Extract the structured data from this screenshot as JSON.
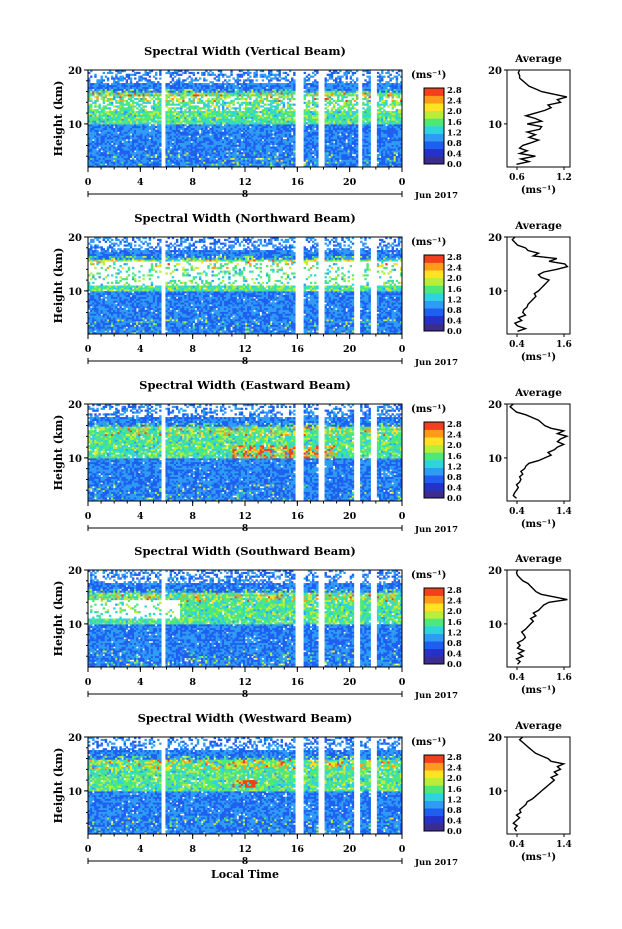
{
  "xaxis": {
    "ticks": [
      "0",
      "4",
      "8",
      "12",
      "16",
      "20",
      "0"
    ],
    "date_marker": "8",
    "month": "Jun 2017",
    "label": "Local Time"
  },
  "colorbar": {
    "unit": "(ms⁻¹)",
    "ticks": [
      "0.0",
      "0.4",
      "0.8",
      "1.2",
      "1.6",
      "2.0",
      "2.4",
      "2.8"
    ],
    "colors": [
      "#3b2c8f",
      "#2432c8",
      "#1e5ff0",
      "#2e9bf5",
      "#2fd3e0",
      "#4ee87a",
      "#b8ee3a",
      "#ffe224",
      "#ff9a1a",
      "#f0401c"
    ]
  },
  "ylabel": "Height (km)",
  "yticks": [
    "10",
    "20"
  ],
  "profile_title": "Average",
  "profile_unit": "(ms⁻¹)",
  "panels": [
    {
      "title": "Spectral Width (Vertical Beam)",
      "profile_xticks": [
        "0.6",
        "1.2"
      ],
      "profile_xlim": [
        0.4,
        1.4
      ],
      "gaps": [
        [
          5.6,
          5.9
        ],
        [
          15.9,
          16.4
        ],
        [
          17.6,
          18.0
        ],
        [
          20.7,
          20.9
        ],
        [
          21.6,
          22.0
        ]
      ],
      "profile": [
        [
          0.55,
          2.5
        ],
        [
          0.75,
          3.0
        ],
        [
          0.62,
          3.5
        ],
        [
          0.85,
          4.0
        ],
        [
          0.6,
          4.5
        ],
        [
          0.72,
          5.0
        ],
        [
          0.6,
          5.5
        ],
        [
          0.65,
          6.0
        ],
        [
          0.78,
          6.5
        ],
        [
          0.9,
          7.0
        ],
        [
          0.75,
          7.5
        ],
        [
          0.85,
          8.0
        ],
        [
          0.72,
          8.5
        ],
        [
          0.92,
          9.0
        ],
        [
          0.95,
          9.5
        ],
        [
          0.72,
          10.0
        ],
        [
          0.95,
          10.5
        ],
        [
          0.85,
          11.0
        ],
        [
          0.7,
          11.5
        ],
        [
          0.85,
          12.0
        ],
        [
          1.0,
          12.5
        ],
        [
          1.1,
          13.0
        ],
        [
          1.05,
          13.5
        ],
        [
          1.25,
          14.0
        ],
        [
          1.2,
          14.5
        ],
        [
          1.35,
          15.0
        ],
        [
          1.15,
          15.5
        ],
        [
          0.95,
          16.0
        ],
        [
          0.85,
          16.5
        ],
        [
          0.75,
          17.0
        ],
        [
          0.7,
          17.5
        ],
        [
          0.65,
          18.0
        ],
        [
          0.6,
          18.5
        ],
        [
          0.6,
          19.0
        ],
        [
          0.58,
          19.5
        ],
        [
          0.6,
          20.0
        ]
      ]
    },
    {
      "title": "Spectral Width (Northward Beam)",
      "profile_xticks": [
        "0.4",
        "1.6"
      ],
      "profile_xlim": [
        0.4,
        1.6
      ],
      "gaps": [
        [
          5.6,
          5.9
        ],
        [
          15.9,
          16.4
        ],
        [
          17.6,
          18.0
        ],
        [
          20.4,
          20.8
        ],
        [
          21.6,
          22.0
        ]
      ],
      "profile": [
        [
          0.6,
          2.5
        ],
        [
          0.75,
          3.0
        ],
        [
          0.6,
          3.5
        ],
        [
          0.55,
          4.0
        ],
        [
          0.68,
          4.5
        ],
        [
          0.62,
          5.0
        ],
        [
          0.75,
          5.5
        ],
        [
          0.7,
          6.0
        ],
        [
          0.72,
          6.5
        ],
        [
          0.78,
          7.0
        ],
        [
          0.8,
          7.5
        ],
        [
          0.85,
          8.0
        ],
        [
          0.9,
          8.5
        ],
        [
          0.95,
          9.0
        ],
        [
          0.92,
          9.5
        ],
        [
          1.0,
          10.0
        ],
        [
          1.05,
          10.5
        ],
        [
          1.1,
          11.0
        ],
        [
          1.15,
          11.5
        ],
        [
          1.2,
          12.0
        ],
        [
          1.05,
          12.5
        ],
        [
          1.0,
          13.0
        ],
        [
          1.1,
          13.5
        ],
        [
          1.35,
          14.0
        ],
        [
          1.55,
          14.5
        ],
        [
          1.5,
          15.0
        ],
        [
          1.2,
          15.5
        ],
        [
          1.35,
          16.0
        ],
        [
          0.9,
          16.5
        ],
        [
          1.0,
          17.0
        ],
        [
          0.8,
          17.5
        ],
        [
          0.75,
          18.0
        ],
        [
          0.6,
          18.5
        ],
        [
          0.55,
          19.0
        ],
        [
          0.5,
          19.5
        ],
        [
          0.55,
          20.0
        ]
      ]
    },
    {
      "title": "Spectral Width (Eastward Beam)",
      "profile_xticks": [
        "0.4",
        "1.4"
      ],
      "profile_xlim": [
        0.4,
        1.4
      ],
      "gaps": [
        [
          5.6,
          5.9
        ],
        [
          15.9,
          16.4
        ],
        [
          17.6,
          18.0
        ],
        [
          20.4,
          20.8
        ],
        [
          21.6,
          22.0
        ]
      ],
      "profile": [
        [
          0.55,
          2.5
        ],
        [
          0.5,
          3.0
        ],
        [
          0.52,
          3.5
        ],
        [
          0.55,
          4.0
        ],
        [
          0.58,
          4.5
        ],
        [
          0.55,
          5.0
        ],
        [
          0.6,
          5.5
        ],
        [
          0.62,
          6.0
        ],
        [
          0.6,
          6.5
        ],
        [
          0.65,
          7.0
        ],
        [
          0.62,
          7.5
        ],
        [
          0.68,
          8.0
        ],
        [
          0.7,
          8.5
        ],
        [
          0.75,
          9.0
        ],
        [
          0.9,
          9.5
        ],
        [
          1.0,
          10.0
        ],
        [
          1.1,
          10.5
        ],
        [
          1.05,
          11.0
        ],
        [
          1.15,
          11.5
        ],
        [
          1.2,
          12.0
        ],
        [
          1.3,
          12.5
        ],
        [
          1.2,
          13.0
        ],
        [
          1.25,
          13.5
        ],
        [
          1.35,
          14.0
        ],
        [
          1.2,
          14.5
        ],
        [
          1.3,
          15.0
        ],
        [
          1.1,
          15.5
        ],
        [
          1.0,
          16.0
        ],
        [
          0.95,
          16.5
        ],
        [
          0.9,
          17.0
        ],
        [
          0.8,
          17.5
        ],
        [
          0.7,
          18.0
        ],
        [
          0.55,
          18.5
        ],
        [
          0.5,
          19.0
        ],
        [
          0.45,
          19.5
        ],
        [
          0.5,
          20.0
        ]
      ]
    },
    {
      "title": "Spectral Width (Southward Beam)",
      "profile_xticks": [
        "0.4",
        "1.6"
      ],
      "profile_xlim": [
        0.4,
        1.6
      ],
      "gaps": [
        [
          5.6,
          5.9
        ],
        [
          15.9,
          16.4
        ],
        [
          17.6,
          18.0
        ],
        [
          20.4,
          20.8
        ],
        [
          21.6,
          22.0
        ]
      ],
      "profile": [
        [
          0.6,
          2.5
        ],
        [
          0.65,
          3.0
        ],
        [
          0.58,
          3.5
        ],
        [
          0.7,
          4.0
        ],
        [
          0.62,
          4.5
        ],
        [
          0.72,
          5.0
        ],
        [
          0.6,
          5.5
        ],
        [
          0.65,
          6.0
        ],
        [
          0.6,
          6.5
        ],
        [
          0.7,
          7.0
        ],
        [
          0.75,
          7.5
        ],
        [
          0.72,
          8.0
        ],
        [
          0.68,
          8.5
        ],
        [
          0.75,
          9.0
        ],
        [
          0.8,
          9.5
        ],
        [
          0.85,
          10.0
        ],
        [
          0.9,
          10.5
        ],
        [
          0.85,
          11.0
        ],
        [
          0.95,
          11.5
        ],
        [
          0.9,
          12.0
        ],
        [
          1.0,
          12.5
        ],
        [
          1.05,
          13.0
        ],
        [
          1.1,
          13.5
        ],
        [
          1.2,
          14.0
        ],
        [
          1.55,
          14.5
        ],
        [
          1.3,
          15.0
        ],
        [
          1.05,
          15.5
        ],
        [
          0.95,
          16.0
        ],
        [
          0.9,
          16.5
        ],
        [
          0.85,
          17.0
        ],
        [
          0.8,
          17.5
        ],
        [
          0.7,
          18.0
        ],
        [
          0.65,
          18.5
        ],
        [
          0.6,
          19.0
        ],
        [
          0.58,
          19.5
        ],
        [
          0.6,
          20.0
        ]
      ]
    },
    {
      "title": "Spectral Width (Westward Beam)",
      "profile_xticks": [
        "0.4",
        "1.4"
      ],
      "profile_xlim": [
        0.4,
        1.4
      ],
      "gaps": [
        [
          5.6,
          5.9
        ],
        [
          15.9,
          16.4
        ],
        [
          17.6,
          18.0
        ],
        [
          20.4,
          20.8
        ],
        [
          21.6,
          22.0
        ]
      ],
      "profile": [
        [
          0.55,
          2.5
        ],
        [
          0.52,
          3.0
        ],
        [
          0.56,
          3.5
        ],
        [
          0.5,
          4.0
        ],
        [
          0.55,
          4.5
        ],
        [
          0.6,
          5.0
        ],
        [
          0.55,
          5.5
        ],
        [
          0.62,
          6.0
        ],
        [
          0.6,
          6.5
        ],
        [
          0.65,
          7.0
        ],
        [
          0.7,
          7.5
        ],
        [
          0.72,
          8.0
        ],
        [
          0.8,
          8.5
        ],
        [
          0.85,
          9.0
        ],
        [
          0.9,
          9.5
        ],
        [
          0.95,
          10.0
        ],
        [
          1.0,
          10.5
        ],
        [
          1.05,
          11.0
        ],
        [
          1.1,
          11.5
        ],
        [
          1.15,
          12.0
        ],
        [
          1.1,
          12.5
        ],
        [
          1.2,
          13.0
        ],
        [
          1.15,
          13.5
        ],
        [
          1.25,
          14.0
        ],
        [
          1.2,
          14.5
        ],
        [
          1.3,
          15.0
        ],
        [
          1.1,
          15.5
        ],
        [
          1.05,
          16.0
        ],
        [
          0.95,
          16.5
        ],
        [
          0.85,
          17.0
        ],
        [
          0.8,
          17.5
        ],
        [
          0.75,
          18.0
        ],
        [
          0.7,
          18.5
        ],
        [
          0.65,
          19.0
        ],
        [
          0.6,
          19.5
        ],
        [
          0.65,
          20.0
        ]
      ]
    }
  ],
  "chart_data": [
    {
      "type": "heatmap",
      "title": "Spectral Width (Vertical Beam)",
      "xlabel": "Local Time",
      "ylabel": "Height (km)",
      "xlim": [
        0,
        24
      ],
      "ylim": [
        2,
        20
      ],
      "colorbar_range": [
        0.0,
        2.8
      ]
    },
    {
      "type": "heatmap",
      "title": "Spectral Width (Northward Beam)",
      "xlabel": "Local Time",
      "ylabel": "Height (km)",
      "xlim": [
        0,
        24
      ],
      "ylim": [
        2,
        20
      ],
      "colorbar_range": [
        0.0,
        2.8
      ]
    },
    {
      "type": "heatmap",
      "title": "Spectral Width (Eastward Beam)",
      "xlabel": "Local Time",
      "ylabel": "Height (km)",
      "xlim": [
        0,
        24
      ],
      "ylim": [
        2,
        20
      ],
      "colorbar_range": [
        0.0,
        2.8
      ]
    },
    {
      "type": "heatmap",
      "title": "Spectral Width (Southward Beam)",
      "xlabel": "Local Time",
      "ylabel": "Height (km)",
      "xlim": [
        0,
        24
      ],
      "ylim": [
        2,
        20
      ],
      "colorbar_range": [
        0.0,
        2.8
      ]
    },
    {
      "type": "heatmap",
      "title": "Spectral Width (Westward Beam)",
      "xlabel": "Local Time",
      "ylabel": "Height (km)",
      "xlim": [
        0,
        24
      ],
      "ylim": [
        2,
        20
      ],
      "colorbar_range": [
        0.0,
        2.8
      ]
    }
  ]
}
